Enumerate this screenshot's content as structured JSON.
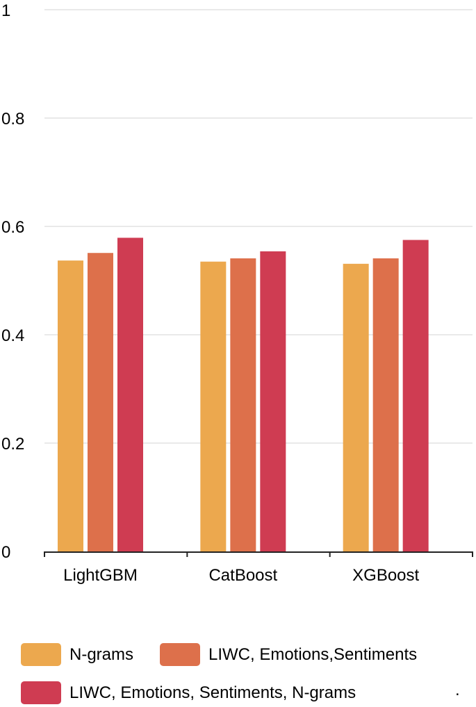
{
  "chart_data": {
    "type": "bar",
    "categories": [
      "LightGBM",
      "CatBoost",
      "XGBoost"
    ],
    "series": [
      {
        "name": "N-grams",
        "color": "#ECA84E",
        "values": [
          0.537,
          0.535,
          0.531
        ]
      },
      {
        "name": "LIWC, Emotions,Sentiments",
        "color": "#DD704B",
        "values": [
          0.551,
          0.541,
          0.541
        ]
      },
      {
        "name": "LIWC, Emotions, Sentiments, N-grams",
        "color": "#CF3C52",
        "values": [
          0.579,
          0.554,
          0.575
        ]
      }
    ],
    "ylim": [
      0,
      1
    ],
    "yticks": [
      "0",
      "0.2",
      "0.4",
      "0.6",
      "0.8",
      "1"
    ],
    "ytick_values": [
      0,
      0.2,
      0.4,
      0.6,
      0.8,
      1
    ],
    "grid": true,
    "legend_position": "bottom",
    "title": "",
    "xlabel": "",
    "ylabel": ""
  },
  "footer_mark": "."
}
